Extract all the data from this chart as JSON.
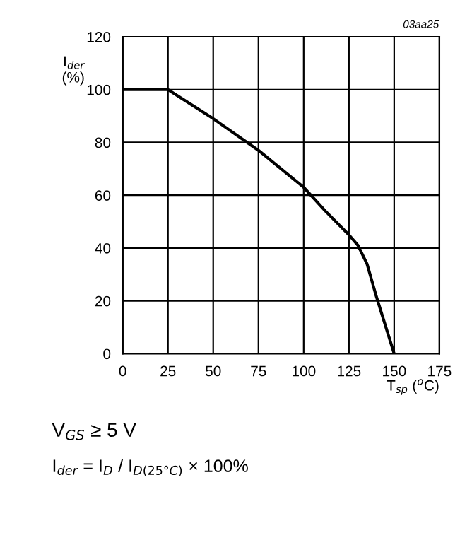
{
  "chart_data": {
    "type": "line",
    "x": [
      0,
      25,
      50,
      75,
      100,
      112,
      125,
      130,
      135,
      140,
      145,
      150
    ],
    "series": [
      {
        "color": "#000000",
        "values": [
          100,
          100,
          89,
          77,
          63,
          54,
          45,
          41,
          34,
          22,
          11,
          0
        ]
      }
    ],
    "xlim": [
      0,
      175
    ],
    "xticks": [
      0,
      25,
      50,
      75,
      100,
      125,
      150,
      175
    ],
    "ylim": [
      0,
      120
    ],
    "yticks": [
      0,
      20,
      40,
      60,
      80,
      100,
      120
    ],
    "xlabel": "T$_{sp}$ ($^{o}$C)",
    "ylabel": "I$_{der}$\n(%)",
    "grid": true,
    "legend": false,
    "marker": "none",
    "line_style": "solid",
    "annotations": [
      "03aa25",
      "V$_{GS}$ ≥ 5 V",
      "I$_{der}$ = I$_{D}$ / I$_{D(25°C)}$ × 100%"
    ]
  }
}
